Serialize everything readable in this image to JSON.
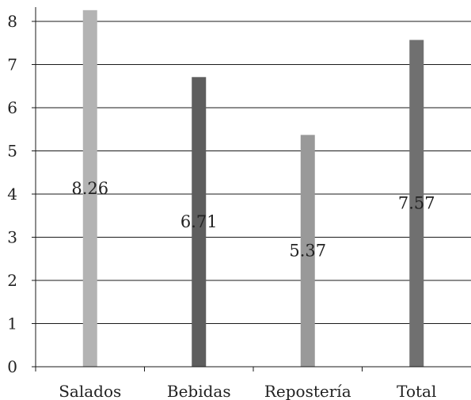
{
  "chart_data": {
    "type": "bar",
    "categories": [
      "Salados",
      "Bebidas",
      "Repostería",
      "Total"
    ],
    "values": [
      8.26,
      6.71,
      5.37,
      7.57
    ],
    "data_labels": [
      "8.26",
      "6.71",
      "5.37",
      "7.57"
    ],
    "colors": [
      "#b3b3b3",
      "#5e5e5e",
      "#999999",
      "#707070"
    ],
    "ylim": [
      0,
      8
    ],
    "yticks": [
      0,
      1,
      2,
      3,
      4,
      5,
      6,
      7,
      8
    ],
    "grid": true,
    "legend": "none",
    "title": "",
    "xlabel": "",
    "ylabel": ""
  }
}
